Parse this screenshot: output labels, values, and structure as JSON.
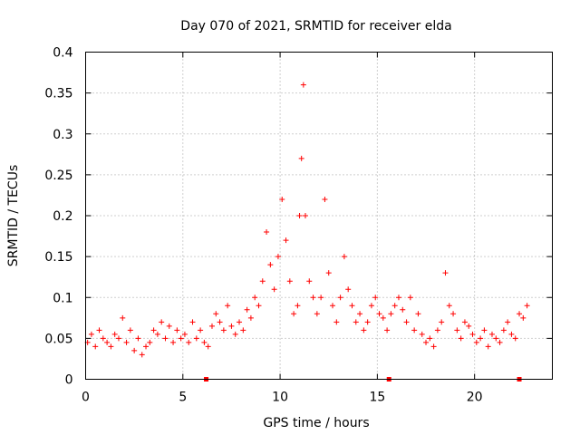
{
  "chart_data": {
    "type": "scatter",
    "title": "Day 070 of 2021, SRMTID for receiver elda",
    "xlabel": "GPS time / hours",
    "ylabel": "SRMTID / TECUs",
    "xlim": [
      0,
      24
    ],
    "ylim": [
      0,
      0.4
    ],
    "x_ticks": [
      0,
      5,
      10,
      15,
      20
    ],
    "x_tick_labels": [
      "0",
      "5",
      "10",
      "15",
      "20"
    ],
    "y_ticks": [
      0,
      0.05,
      0.1,
      0.15,
      0.2,
      0.25,
      0.3,
      0.35,
      0.4
    ],
    "y_tick_labels": [
      "0",
      "0.05",
      "0.1",
      "0.15",
      "0.2",
      "0.25",
      "0.3",
      "0.35",
      "0.4"
    ],
    "grid": true,
    "marker": "+",
    "series": [
      {
        "name": "SRMTID",
        "color": "#ff0000",
        "x": [
          0.1,
          0.3,
          0.5,
          0.7,
          0.9,
          1.1,
          1.3,
          1.5,
          1.7,
          1.9,
          2.1,
          2.3,
          2.5,
          2.7,
          2.9,
          3.1,
          3.3,
          3.5,
          3.7,
          3.9,
          4.1,
          4.3,
          4.5,
          4.7,
          4.9,
          5.1,
          5.3,
          5.5,
          5.7,
          5.9,
          6.1,
          6.3,
          6.5,
          6.7,
          6.9,
          7.1,
          7.3,
          7.5,
          7.7,
          7.9,
          8.1,
          8.3,
          8.5,
          8.7,
          8.9,
          9.1,
          9.3,
          9.5,
          9.7,
          9.9,
          10.1,
          10.3,
          10.5,
          10.7,
          10.9,
          11.0,
          11.1,
          11.2,
          11.3,
          11.5,
          11.7,
          11.9,
          12.1,
          12.3,
          12.5,
          12.7,
          12.9,
          13.1,
          13.3,
          13.5,
          13.7,
          13.9,
          14.1,
          14.3,
          14.5,
          14.7,
          14.9,
          15.1,
          15.3,
          15.5,
          15.7,
          15.9,
          16.1,
          16.3,
          16.5,
          16.7,
          16.9,
          17.1,
          17.3,
          17.5,
          17.7,
          17.9,
          18.1,
          18.3,
          18.5,
          18.7,
          18.9,
          19.1,
          19.3,
          19.5,
          19.7,
          19.9,
          20.1,
          20.3,
          20.5,
          20.7,
          20.9,
          21.1,
          21.3,
          21.5,
          21.7,
          21.9,
          22.1,
          22.3,
          22.5,
          22.7
        ],
        "y": [
          0.045,
          0.055,
          0.04,
          0.06,
          0.05,
          0.045,
          0.04,
          0.055,
          0.05,
          0.075,
          0.045,
          0.06,
          0.035,
          0.05,
          0.03,
          0.04,
          0.045,
          0.06,
          0.055,
          0.07,
          0.05,
          0.065,
          0.045,
          0.06,
          0.05,
          0.055,
          0.045,
          0.07,
          0.05,
          0.06,
          0.045,
          0.04,
          0.065,
          0.08,
          0.07,
          0.06,
          0.09,
          0.065,
          0.055,
          0.07,
          0.06,
          0.085,
          0.075,
          0.1,
          0.09,
          0.12,
          0.18,
          0.14,
          0.11,
          0.15,
          0.22,
          0.17,
          0.12,
          0.08,
          0.09,
          0.2,
          0.27,
          0.36,
          0.2,
          0.12,
          0.1,
          0.08,
          0.1,
          0.22,
          0.13,
          0.09,
          0.07,
          0.1,
          0.15,
          0.11,
          0.09,
          0.07,
          0.08,
          0.06,
          0.07,
          0.09,
          0.1,
          0.08,
          0.075,
          0.06,
          0.08,
          0.09,
          0.1,
          0.085,
          0.07,
          0.1,
          0.06,
          0.08,
          0.055,
          0.045,
          0.05,
          0.04,
          0.06,
          0.07,
          0.13,
          0.09,
          0.08,
          0.06,
          0.05,
          0.07,
          0.065,
          0.055,
          0.045,
          0.05,
          0.06,
          0.04,
          0.055,
          0.05,
          0.045,
          0.06,
          0.07,
          0.055,
          0.05,
          0.08,
          0.075,
          0.09
        ]
      }
    ],
    "gap_markers_x": [
      6.2,
      15.6,
      22.3
    ]
  }
}
